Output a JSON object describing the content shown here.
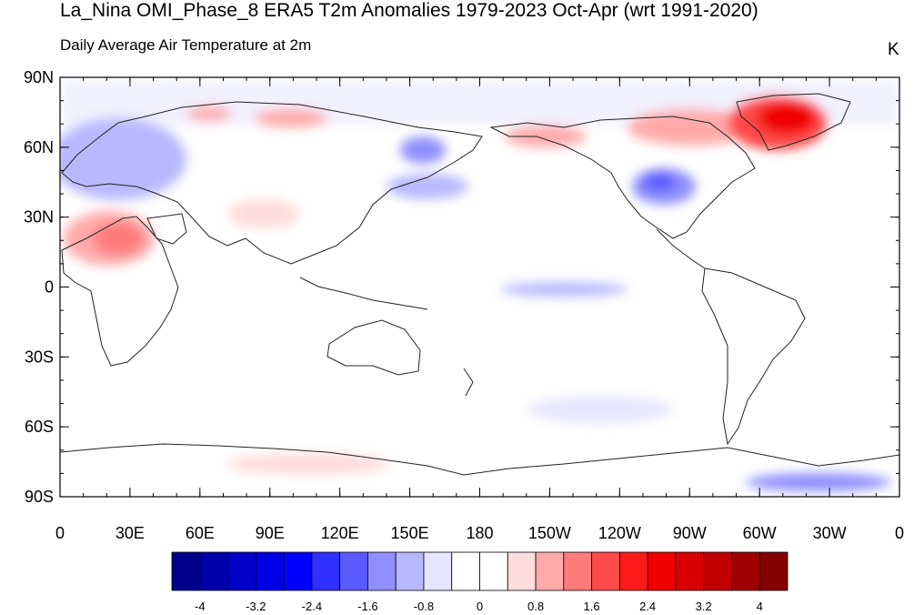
{
  "title": "La_Nina OMI_Phase_8 ERA5 T2m Anomalies 1979-2023 Oct-Apr (wrt 1991-2020)",
  "subtitle": "Daily Average Air Temperature at 2m",
  "units": "K",
  "lat_labels": [
    "90N",
    "60N",
    "30N",
    "0",
    "30S",
    "60S",
    "90S"
  ],
  "lon_labels": [
    "0",
    "30E",
    "60E",
    "90E",
    "120E",
    "150E",
    "180",
    "150W",
    "120W",
    "90W",
    "60W",
    "30W",
    "0"
  ],
  "colorbar": {
    "colors": [
      "#00008b",
      "#0000a8",
      "#0000c8",
      "#0000e6",
      "#0000ff",
      "#2f2fff",
      "#5a5aff",
      "#8f8fff",
      "#b8b8ff",
      "#e6e6ff",
      "#ffffff",
      "#ffffff",
      "#ffdcdc",
      "#ffaaaa",
      "#ff7a7a",
      "#ff4a4a",
      "#ff1a1a",
      "#f00000",
      "#d80000",
      "#c00000",
      "#a00000",
      "#850000"
    ],
    "labels": [
      "-4",
      "-3.2",
      "-2.4",
      "-1.6",
      "-0.8",
      "0",
      "0.8",
      "1.6",
      "2.4",
      "3.2",
      "4"
    ]
  },
  "anomaly_regions": [
    {
      "name": "europe-cold",
      "color": "#5a5aff"
    },
    {
      "name": "europe-cold-core",
      "color": "#2f2fff"
    },
    {
      "name": "europe-cold-outer",
      "color": "#b8b8ff"
    },
    {
      "name": "sahara-warm",
      "color": "#ffaaaa"
    },
    {
      "name": "sahara-warm-core",
      "color": "#ff7a7a"
    },
    {
      "name": "siberia-warm",
      "color": "#ffaaaa"
    },
    {
      "name": "scandinavia-warm",
      "color": "#ffaaaa"
    },
    {
      "name": "tibet-warm",
      "color": "#ffdcdc"
    },
    {
      "name": "east-asia-cold",
      "color": "#8f8fff"
    },
    {
      "name": "north-pacific-cold",
      "color": "#b8b8ff"
    },
    {
      "name": "alaska-warm",
      "color": "#ffaaaa"
    },
    {
      "name": "canada-warm-outer",
      "color": "#ffaaaa"
    },
    {
      "name": "greenland-warm",
      "color": "#ff4a4a"
    },
    {
      "name": "greenland-warm-core",
      "color": "#f00000"
    },
    {
      "name": "us-cold",
      "color": "#8f8fff"
    },
    {
      "name": "us-cold-core",
      "color": "#5a5aff"
    },
    {
      "name": "equatorial-pacific-cold",
      "color": "#b8b8ff"
    },
    {
      "name": "south-pacific-cold",
      "color": "#e6e6ff"
    },
    {
      "name": "southern-ocean-warm",
      "color": "#ffdcdc"
    },
    {
      "name": "antarctic-cold",
      "color": "#8f8fff"
    }
  ]
}
